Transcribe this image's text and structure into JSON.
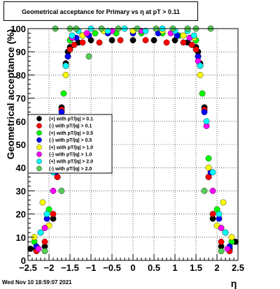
{
  "title": "Geometrical acceptance for Primary vs   η at pT > 0.11",
  "timestamp": "Wed Nov 10 18:59:07 2021",
  "chart_data": {
    "type": "scatter",
    "title": "Geometrical acceptance for Primary vs   η at pT > 0.11",
    "xlabel": "η",
    "ylabel": "Geometrical acceptance (%)",
    "xlim": [
      -2.5,
      2.5
    ],
    "ylim": [
      0,
      100
    ],
    "x_ticks": [
      "−2.5",
      "−2",
      "−1.5",
      "−1",
      "−0.5",
      "0",
      "0.5",
      "1",
      "1.5",
      "2",
      "2.5"
    ],
    "y_ticks": [
      "0",
      "10",
      "20",
      "30",
      "40",
      "50",
      "60",
      "70",
      "80",
      "90",
      "100"
    ],
    "grid": true,
    "legend_position": "left-middle",
    "series": [
      {
        "name": "(+) with pT/|q| > 0.1",
        "color": "#000000",
        "marker": "circle",
        "x": [
          -2.44,
          -2.3,
          -2.1,
          -1.9,
          -1.8,
          -1.7,
          -1.6,
          -1.55,
          -1.5,
          -1.3,
          -1.0,
          -0.5,
          0.0,
          0.5,
          1.0,
          1.3,
          1.5,
          1.55,
          1.6,
          1.7,
          1.8,
          1.9,
          2.1,
          2.3,
          2.44
        ],
        "y": [
          5,
          5,
          6,
          18,
          36,
          66,
          85,
          90,
          92,
          94,
          95,
          95,
          95,
          95,
          95,
          94,
          92,
          90,
          85,
          66,
          36,
          18,
          6,
          5,
          8
        ]
      },
      {
        "name": "(-) with pT/|q| > 0.1",
        "color": "#ff0000",
        "marker": "circle",
        "x": [
          -2.3,
          -2.1,
          -1.9,
          -1.8,
          -1.7,
          -1.6,
          -1.55,
          -1.5,
          -1.4,
          -1.2,
          -0.8,
          -0.3,
          0.3,
          0.8,
          1.2,
          1.4,
          1.5,
          1.55,
          1.6,
          1.7,
          1.8,
          1.9,
          2.1,
          2.3
        ],
        "y": [
          4,
          8,
          20,
          36,
          65,
          84,
          88,
          91,
          93,
          94,
          94,
          95,
          95,
          94,
          94,
          93,
          91,
          88,
          84,
          65,
          36,
          20,
          8,
          4
        ]
      },
      {
        "name": "(+) with pT/|q| > 0.5",
        "color": "#00ff00",
        "marker": "circle",
        "x": [
          -2.35,
          -2.2,
          -2.0,
          -1.8,
          -1.65,
          -1.5,
          -1.2,
          -0.9,
          -0.4,
          0.2,
          0.7,
          1.1,
          1.5,
          1.65,
          1.8,
          2.0,
          2.2,
          2.35
        ],
        "y": [
          8,
          12,
          22,
          44,
          72,
          95,
          97,
          98,
          98,
          98,
          98,
          97,
          95,
          72,
          44,
          22,
          12,
          8
        ]
      },
      {
        "name": "(-) with pT/|q| > 0.5",
        "color": "#0000ff",
        "marker": "circle",
        "x": [
          -2.3,
          -2.05,
          -1.85,
          -1.7,
          -1.55,
          -1.35,
          -1.05,
          -0.6,
          0.0,
          0.6,
          1.05,
          1.35,
          1.55,
          1.7,
          1.85,
          2.05,
          2.3
        ],
        "y": [
          6,
          18,
          38,
          64,
          88,
          96,
          97,
          98,
          98,
          98,
          97,
          96,
          88,
          64,
          38,
          18,
          6
        ]
      },
      {
        "name": "(+) with pT/|q| > 1.0",
        "color": "#ffff00",
        "marker": "circle",
        "x": [
          -2.35,
          -2.15,
          -2.0,
          -1.8,
          -1.6,
          -1.45,
          -1.2,
          -0.7,
          0.0,
          0.7,
          1.2,
          1.45,
          1.6,
          1.8,
          2.0,
          2.15,
          2.35
        ],
        "y": [
          10,
          25,
          15,
          40,
          80,
          96,
          97,
          99,
          99,
          99,
          97,
          96,
          80,
          40,
          15,
          25,
          10
        ]
      },
      {
        "name": "(-) with pT/|q| > 1.0",
        "color": "#ff00ff",
        "marker": "circle",
        "x": [
          -2.25,
          -2.1,
          -1.9,
          -1.75,
          -1.6,
          -1.45,
          -1.1,
          -0.5,
          0.2,
          0.9,
          1.35,
          1.55,
          1.75,
          1.9,
          2.1,
          2.25
        ],
        "y": [
          5,
          14,
          30,
          58,
          84,
          96,
          98,
          99,
          99,
          98,
          96,
          86,
          58,
          30,
          14,
          5
        ]
      },
      {
        "name": "(+) with pT/|q| > 2.0",
        "color": "#00ffff",
        "marker": "circle",
        "x": [
          -2.2,
          -2.05,
          -1.9,
          -1.75,
          -1.6,
          -1.45,
          -1.3,
          -1.0,
          -0.6,
          -0.2,
          0.3,
          0.7,
          1.0,
          1.3,
          1.45,
          1.6,
          1.75,
          1.9,
          2.05,
          2.2
        ],
        "y": [
          12,
          20,
          38,
          60,
          84,
          97,
          99,
          100,
          99,
          100,
          99,
          100,
          99,
          99,
          97,
          84,
          60,
          38,
          20,
          12
        ]
      },
      {
        "name": "(-) with pT/|q| > 2.0",
        "color": "#55cc55",
        "marker": "circle",
        "x": [
          -2.1,
          -1.85,
          -1.7,
          -1.5,
          -1.35,
          -1.05,
          -0.75,
          -0.35,
          0.1,
          0.55,
          0.95,
          1.3,
          1.5,
          1.7,
          1.85,
          2.1
        ],
        "y": [
          4,
          100,
          30,
          100,
          100,
          88,
          100,
          100,
          100,
          100,
          100,
          100,
          100,
          30,
          100,
          4
        ]
      }
    ]
  }
}
